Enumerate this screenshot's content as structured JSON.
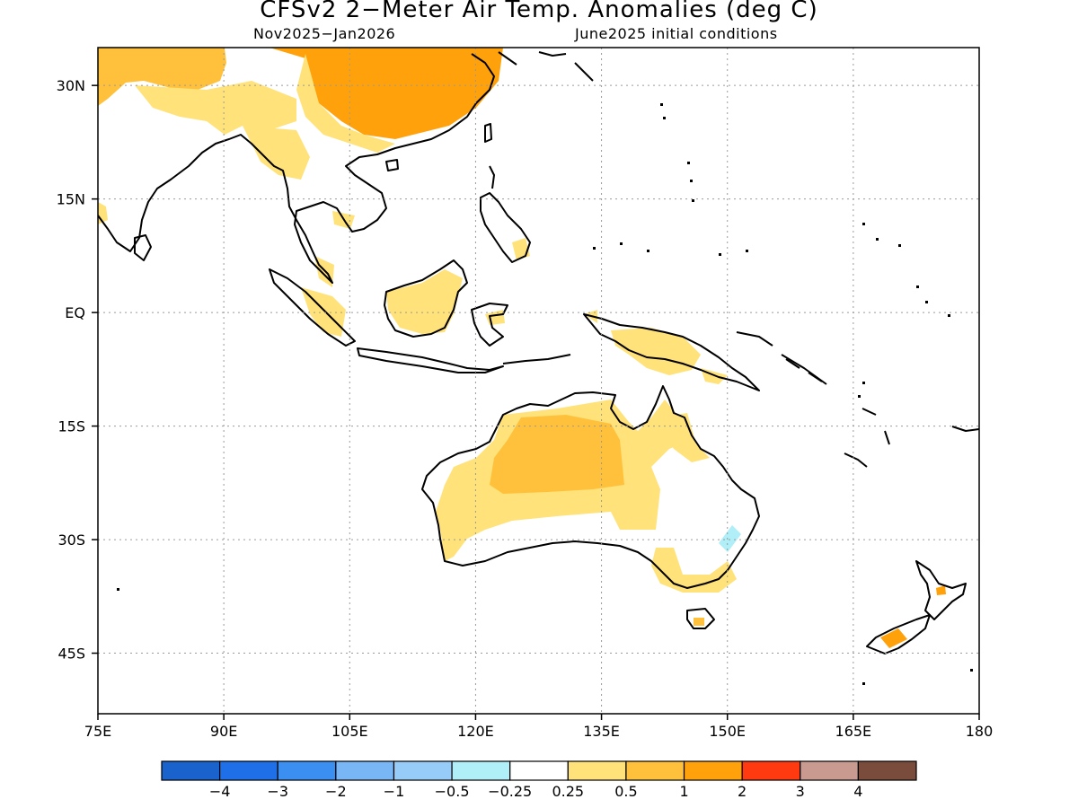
{
  "title": "CFSv2 2−Meter Air Temp. Anomalies (deg C)",
  "subtitle_left": "Nov2025−Jan2026",
  "subtitle_right": "June2025 initial conditions",
  "map": {
    "lon_range": [
      75,
      180
    ],
    "lat_range": [
      -53,
      35
    ],
    "lon_ticks": [
      "75E",
      "90E",
      "105E",
      "120E",
      "135E",
      "150E",
      "165E",
      "180"
    ],
    "lat_ticks": [
      "30N",
      "15N",
      "EQ",
      "15S",
      "30S",
      "45S"
    ],
    "grid": "dotted"
  },
  "colorbar": {
    "colors": [
      "#1a62cc",
      "#1f6fe8",
      "#3b8ff0",
      "#78b6f5",
      "#98ccf8",
      "#b0eef8",
      "#ffffff",
      "#ffe27a",
      "#ffc13b",
      "#ffa10a",
      "#ff3a10",
      "#c89a90",
      "#7a4c3c"
    ],
    "labels": [
      "−4",
      "−3",
      "−2",
      "−1",
      "−0.5",
      "−0.25",
      "0.25",
      "0.5",
      "1",
      "2",
      "3",
      "4"
    ]
  },
  "legend_colors": {
    "land_outline": "#000000",
    "anomaly_0_25_to_0_5": "#ffe27a",
    "anomaly_0_5_to_1": "#ffc13b",
    "anomaly_1_to_2": "#ffa10a",
    "anomaly_neg_0_5_to_neg_0_25": "#b0eef8"
  }
}
